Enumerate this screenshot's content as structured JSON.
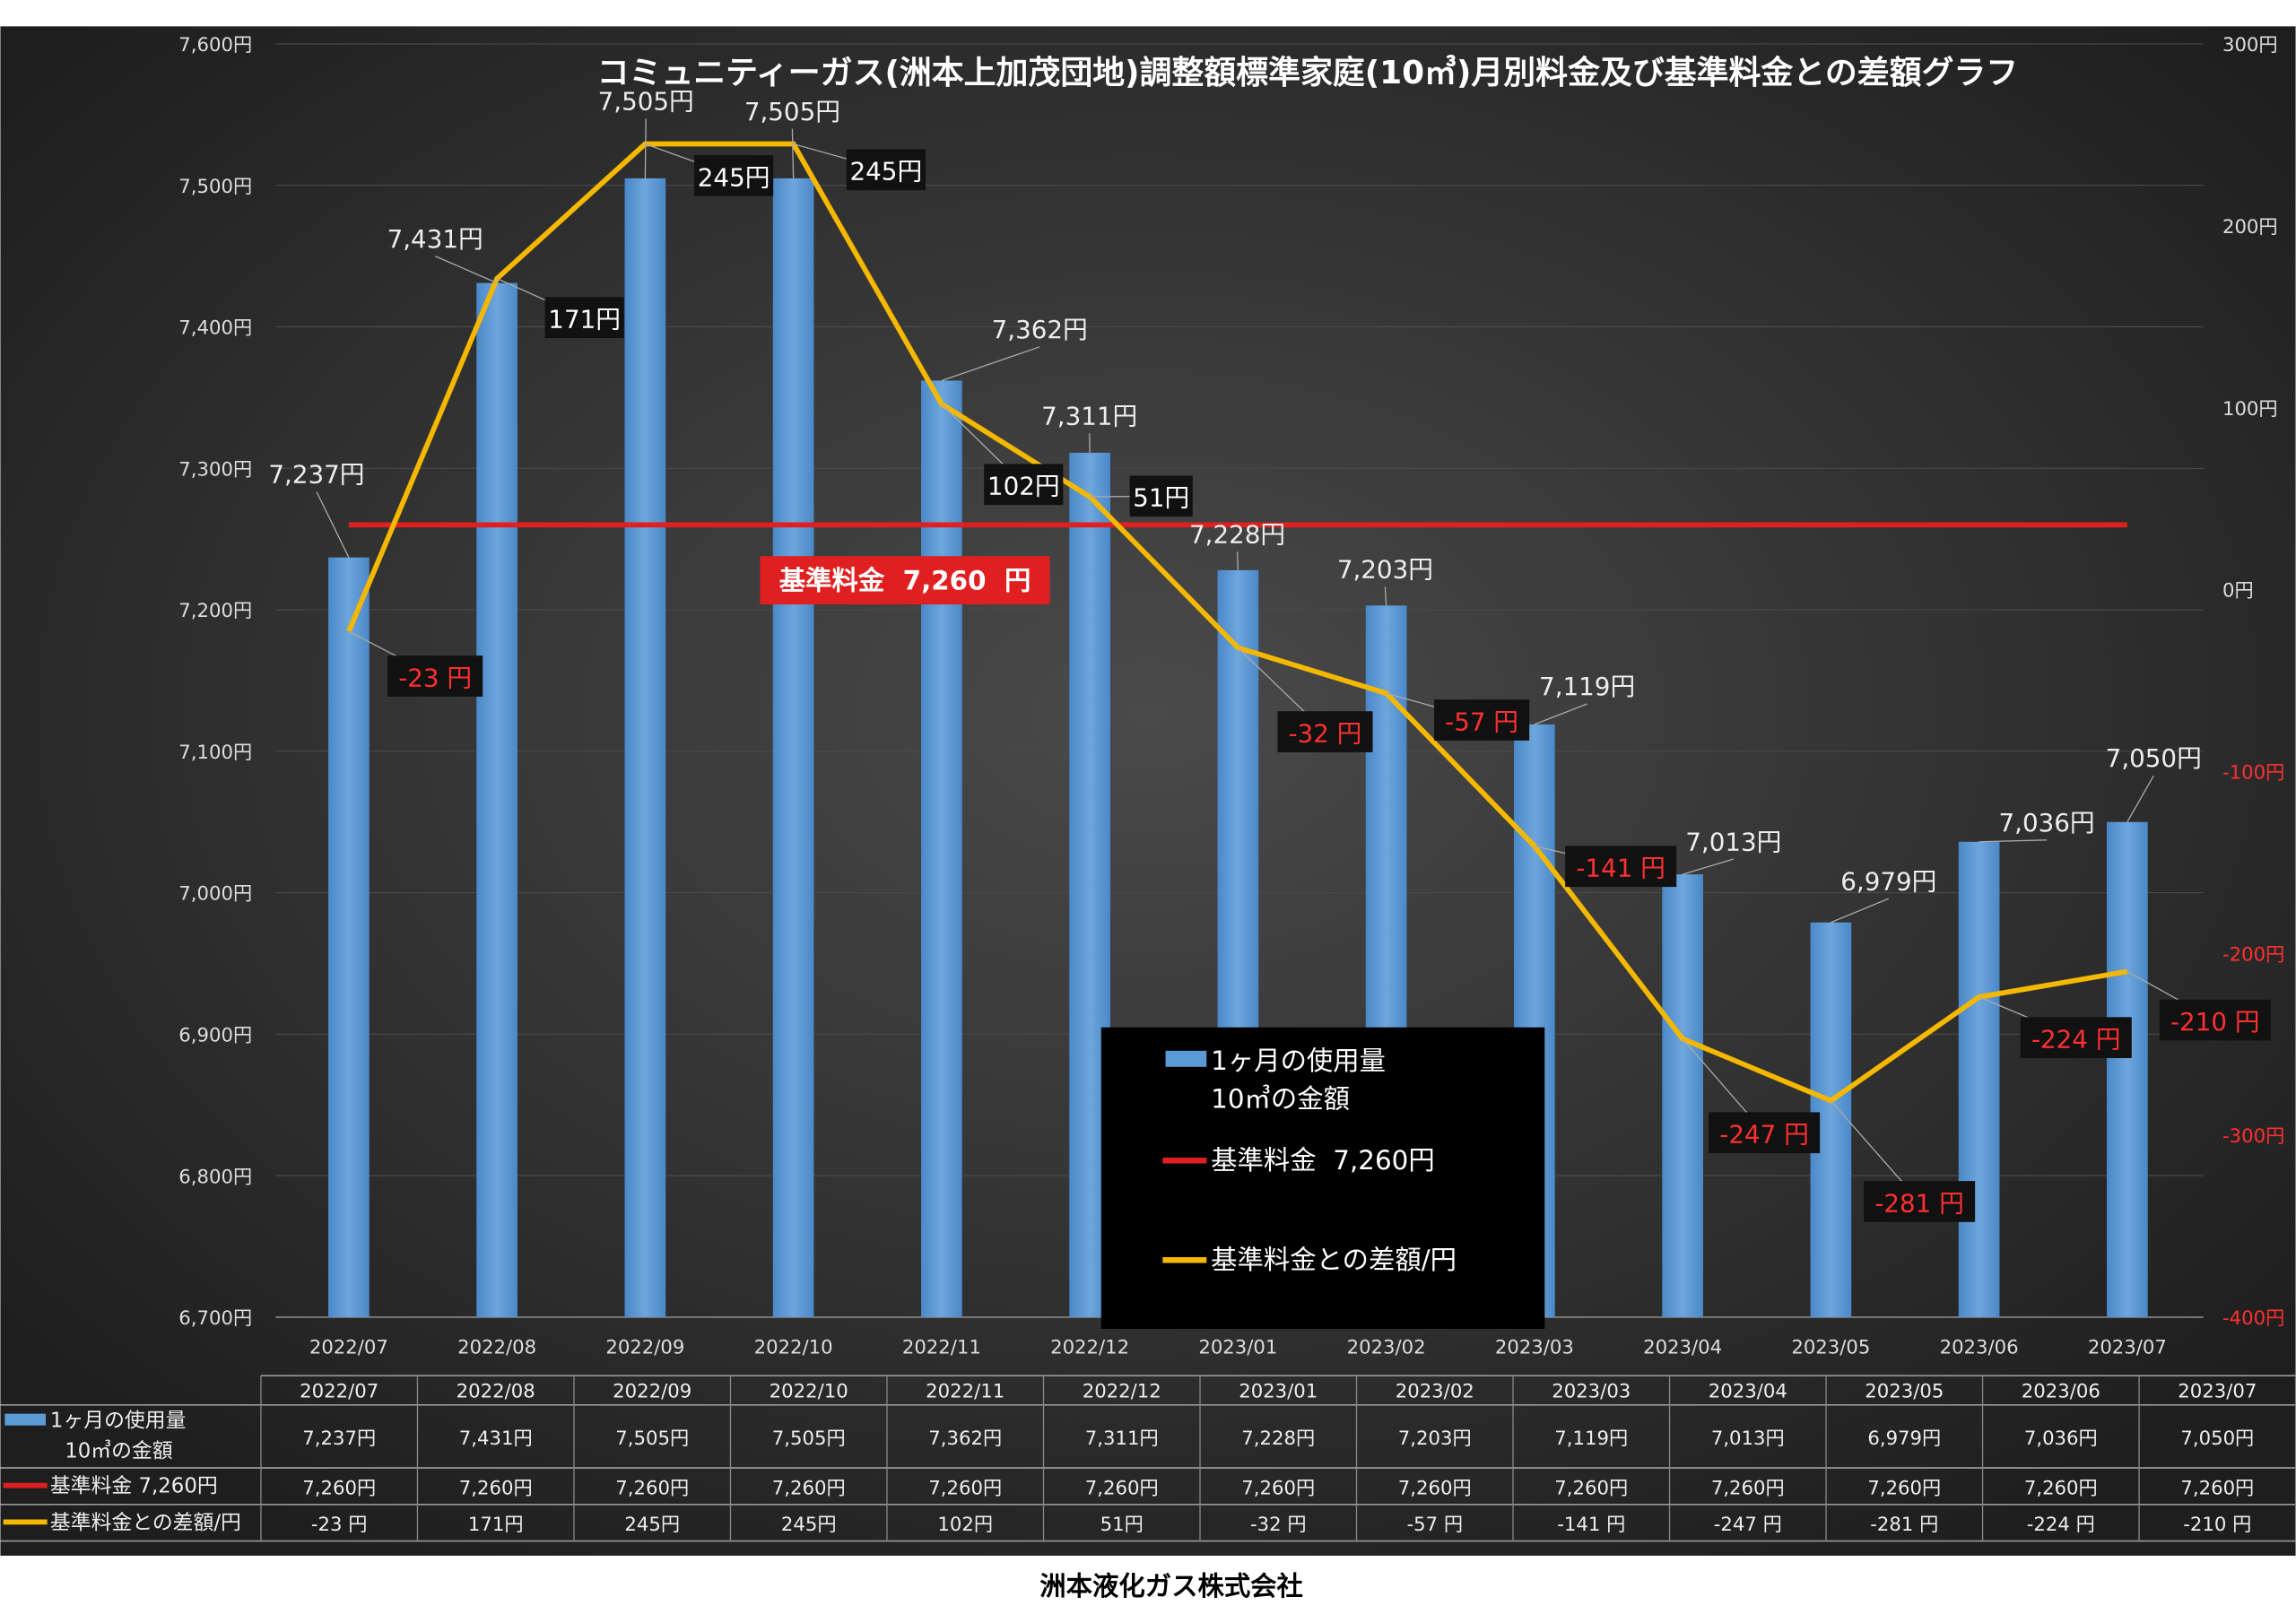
{
  "chart_data": {
    "type": "bar",
    "title": "コミュニティーガス(洲本上加茂団地)調整額標準家庭(10㎥)月別料金及び基準料金との差額グラフ",
    "categories": [
      "2022/07",
      "2022/08",
      "2022/09",
      "2022/10",
      "2022/11",
      "2022/12",
      "2023/01",
      "2023/02",
      "2023/03",
      "2023/04",
      "2023/05",
      "2023/06",
      "2023/07"
    ],
    "series": [
      {
        "name": "1ヶ月の使用量 10㎥の金額",
        "type": "bar",
        "axis": "left",
        "color": "#5b9bd5",
        "values": [
          7237,
          7431,
          7505,
          7505,
          7362,
          7311,
          7228,
          7203,
          7119,
          7013,
          6979,
          7036,
          7050
        ],
        "labels": [
          "7,237円",
          "7,431円",
          "7,505円",
          "7,505円",
          "7,362円",
          "7,311円",
          "7,228円",
          "7,203円",
          "7,119円",
          "7,013円",
          "6,979円",
          "7,036円",
          "7,050円"
        ]
      },
      {
        "name": "基準料金 7,260円",
        "type": "line",
        "axis": "left",
        "color": "#e02020",
        "values": [
          7260,
          7260,
          7260,
          7260,
          7260,
          7260,
          7260,
          7260,
          7260,
          7260,
          7260,
          7260,
          7260
        ],
        "labels": [
          "7,260円",
          "7,260円",
          "7,260円",
          "7,260円",
          "7,260円",
          "7,260円",
          "7,260円",
          "7,260円",
          "7,260円",
          "7,260円",
          "7,260円",
          "7,260円",
          "7,260円"
        ]
      },
      {
        "name": "基準料金との差額/円",
        "type": "line",
        "axis": "right",
        "color": "#f5b800",
        "values": [
          -23,
          171,
          245,
          245,
          102,
          51,
          -32,
          -57,
          -141,
          -247,
          -281,
          -224,
          -210
        ],
        "labels": [
          "-23 円",
          "171円",
          "245円",
          "245円",
          "102円",
          "51円",
          "-32 円",
          "-57 円",
          "-141 円",
          "-247 円",
          "-281 円",
          "-224 円",
          "-210 円"
        ],
        "chart_labels": [
          "-23 円",
          "171円",
          "245円",
          "245円",
          "102円",
          "51円",
          "-32 円",
          "-57 円",
          "-141 円",
          "-247 円",
          "-281 円",
          "-224 円",
          "-210 円"
        ]
      }
    ],
    "left_axis": {
      "ylim": [
        6700,
        7600
      ],
      "ticks": [
        "6,700円",
        "6,800円",
        "6,900円",
        "7,000円",
        "7,100円",
        "7,200円",
        "7,300円",
        "7,400円",
        "7,500円",
        "7,600円"
      ]
    },
    "right_axis": {
      "ylim": [
        -400,
        300
      ],
      "ticks": [
        "-400円",
        "-300円",
        "-200円",
        "-100円",
        "0円",
        "100円",
        "200円",
        "300円"
      ]
    },
    "grid": true,
    "baseline_annotation": "基準料金  7,260  円",
    "legend": {
      "placement": "bottom-center",
      "items": [
        "1ヶ月の使用量",
        "10㎥の金額",
        "基準料金  7,260円",
        "基準料金との差額/円"
      ]
    },
    "table": {
      "row_headers": [
        [
          "1ヶ月の使用量",
          "10㎥の金額"
        ],
        [
          "基準料金  7,260円"
        ],
        [
          "基準料金との差額/円"
        ]
      ]
    }
  },
  "footer": {
    "company": "洲本液化ガス株式会社"
  },
  "colors": {
    "bar": "#5b9bd5",
    "base": "#e02020",
    "diff": "#f5b800",
    "negative": "#ff3030"
  }
}
